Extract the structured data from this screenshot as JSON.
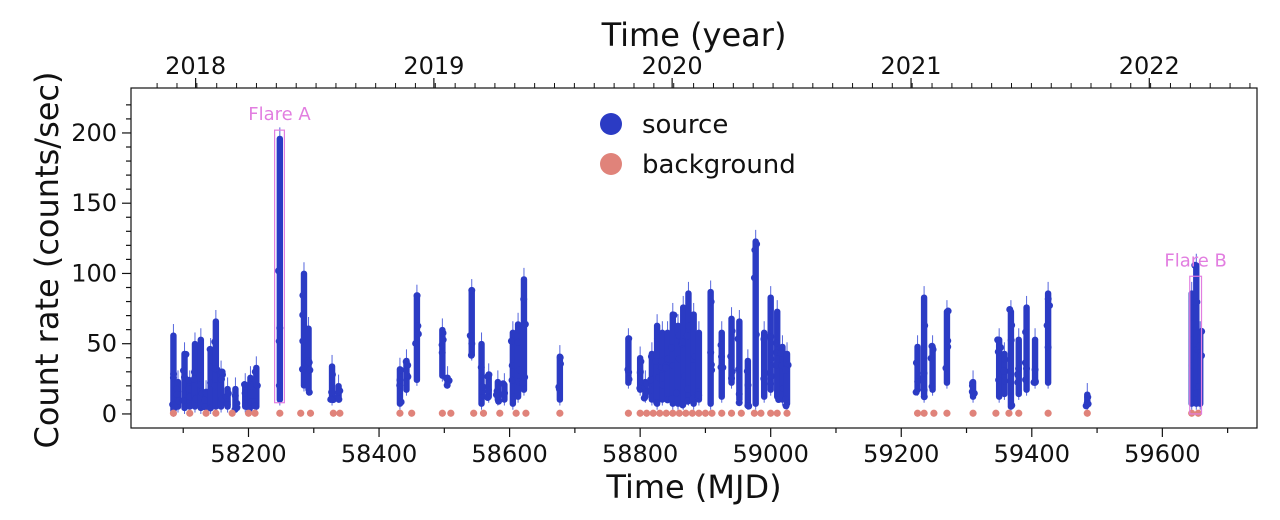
{
  "chart_data": {
    "type": "scatter",
    "title": "",
    "xlabel": "Time (MJD)",
    "ylabel": "Count rate (counts/sec)",
    "top_axis_label": "Time (year)",
    "xlim": [
      58020,
      59745
    ],
    "ylim": [
      -10,
      232
    ],
    "grid": false,
    "legend_position": "top-center",
    "x_ticks": [
      58200,
      58400,
      58600,
      58800,
      59000,
      59200,
      59400,
      59600
    ],
    "y_ticks": [
      0,
      50,
      100,
      150,
      200
    ],
    "top_ticks": [
      {
        "label": "2018",
        "mjd": 58119
      },
      {
        "label": "2019",
        "mjd": 58484
      },
      {
        "label": "2020",
        "mjd": 58849
      },
      {
        "label": "2021",
        "mjd": 59215
      },
      {
        "label": "2022",
        "mjd": 59580
      }
    ],
    "series": [
      {
        "name": "source",
        "color": "#2b3bc4",
        "observations": [
          [
            58085,
            0,
            58
          ],
          [
            58092,
            3,
            25
          ],
          [
            58102,
            2,
            45
          ],
          [
            58110,
            3,
            25
          ],
          [
            58118,
            3,
            52
          ],
          [
            58127,
            2,
            55
          ],
          [
            58135,
            3,
            18
          ],
          [
            58142,
            2,
            48
          ],
          [
            58150,
            3,
            68
          ],
          [
            58158,
            3,
            32
          ],
          [
            58168,
            3,
            20
          ],
          [
            58180,
            3,
            20
          ],
          [
            58195,
            3,
            23
          ],
          [
            58203,
            3,
            28
          ],
          [
            58212,
            3,
            35
          ],
          [
            58248,
            8,
            198
          ],
          [
            58285,
            18,
            102
          ],
          [
            58292,
            15,
            63
          ],
          [
            58328,
            8,
            36
          ],
          [
            58338,
            10,
            22
          ],
          [
            58432,
            5,
            34
          ],
          [
            58442,
            15,
            40
          ],
          [
            58458,
            22,
            86
          ],
          [
            58497,
            25,
            62
          ],
          [
            58505,
            20,
            28
          ],
          [
            58542,
            40,
            90
          ],
          [
            58557,
            5,
            52
          ],
          [
            58568,
            10,
            30
          ],
          [
            58582,
            8,
            25
          ],
          [
            58592,
            8,
            23
          ],
          [
            58605,
            5,
            60
          ],
          [
            58613,
            10,
            66
          ],
          [
            58622,
            15,
            98
          ],
          [
            58677,
            8,
            43
          ],
          [
            58782,
            20,
            55
          ],
          [
            58800,
            15,
            42
          ],
          [
            58808,
            10,
            25
          ],
          [
            58818,
            8,
            45
          ],
          [
            58826,
            5,
            65
          ],
          [
            58834,
            8,
            60
          ],
          [
            58842,
            10,
            60
          ],
          [
            58850,
            5,
            73
          ],
          [
            58858,
            5,
            65
          ],
          [
            58866,
            5,
            78
          ],
          [
            58874,
            8,
            88
          ],
          [
            58882,
            5,
            73
          ],
          [
            58890,
            8,
            60
          ],
          [
            58908,
            5,
            89
          ],
          [
            58925,
            10,
            60
          ],
          [
            58940,
            20,
            70
          ],
          [
            58952,
            8,
            68
          ],
          [
            58965,
            5,
            40
          ],
          [
            58977,
            5,
            125
          ],
          [
            58990,
            10,
            60
          ],
          [
            59000,
            15,
            85
          ],
          [
            59010,
            10,
            75
          ],
          [
            59018,
            8,
            50
          ],
          [
            59025,
            5,
            45
          ],
          [
            59225,
            15,
            50
          ],
          [
            59235,
            10,
            85
          ],
          [
            59248,
            15,
            50
          ],
          [
            59270,
            20,
            75
          ],
          [
            59310,
            10,
            25
          ],
          [
            59350,
            10,
            55
          ],
          [
            59358,
            12,
            45
          ],
          [
            59368,
            3,
            75
          ],
          [
            59380,
            12,
            55
          ],
          [
            59392,
            15,
            78
          ],
          [
            59405,
            20,
            55
          ],
          [
            59425,
            20,
            88
          ],
          [
            59485,
            5,
            16
          ],
          [
            59645,
            5,
            88
          ],
          [
            59652,
            5,
            108
          ],
          [
            59658,
            5,
            60
          ]
        ]
      },
      {
        "name": "background",
        "color": "#e0837a",
        "observations_mjd": [
          58085,
          58110,
          58135,
          58150,
          58175,
          58200,
          58210,
          58248,
          58280,
          58295,
          58330,
          58340,
          58432,
          58450,
          58497,
          58510,
          58545,
          58560,
          58585,
          58610,
          58625,
          58677,
          58782,
          58800,
          58810,
          58820,
          58830,
          58840,
          58850,
          58860,
          58870,
          58880,
          58890,
          58900,
          58910,
          58925,
          58940,
          58955,
          58975,
          58985,
          59000,
          59010,
          59025,
          59225,
          59235,
          59250,
          59270,
          59310,
          59345,
          59365,
          59380,
          59425,
          59485,
          59645,
          59655
        ],
        "value": 0.5
      }
    ],
    "annotations": [
      {
        "label": "Flare A",
        "x_range": [
          58240,
          58255
        ],
        "y_range": [
          8,
          202
        ],
        "color": "#e27ee0"
      },
      {
        "label": "Flare B",
        "x_range": [
          59642,
          59660
        ],
        "y_range": [
          0,
          98
        ],
        "color": "#e27ee0"
      }
    ]
  }
}
